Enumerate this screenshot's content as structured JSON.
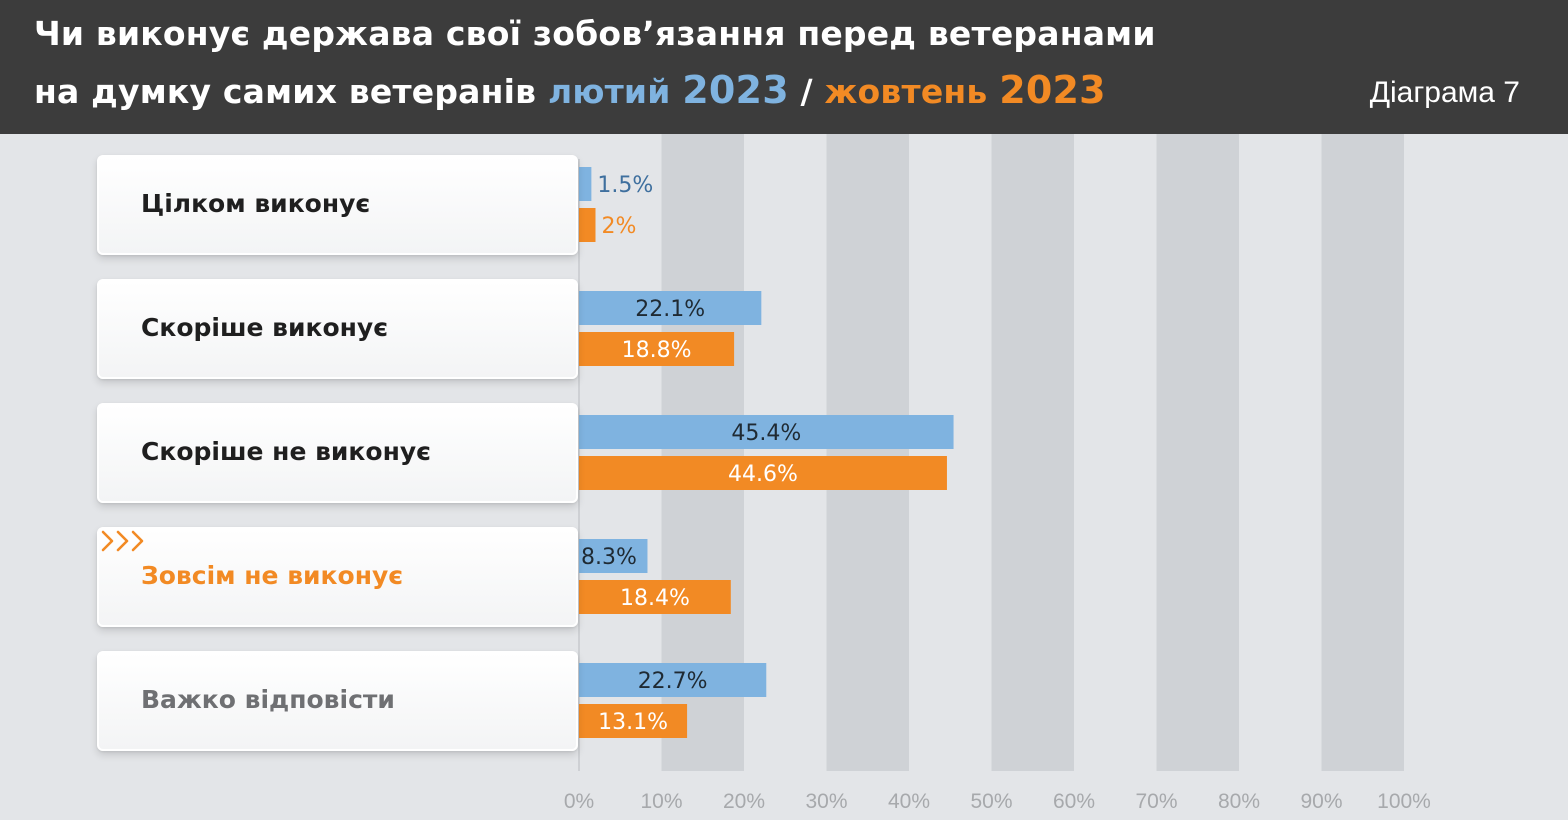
{
  "header": {
    "title_line1": "Чи виконує держава свої зобов’язання перед ветеранами",
    "title_line2_prefix": "на думку самих ветеранів",
    "title_feb_word": "лютий",
    "title_feb_year": "2023",
    "title_sep": "/",
    "title_oct_word": "жовтень",
    "title_oct_year": "2023",
    "diagram_label": "Діаграма 7"
  },
  "colors": {
    "feb": "#7fb3e0",
    "oct": "#f28a24",
    "header_bg": "#3c3c3c",
    "highlight_label": "#f28a24",
    "muted_label": "#6f7073"
  },
  "chart_data": {
    "type": "bar",
    "orientation": "horizontal",
    "title": "Чи виконує держава свої зобов’язання перед ветеранами на думку самих ветеранів лютий 2023 / жовтень 2023",
    "categories": [
      "Цілком виконує",
      "Скоріше виконує",
      "Скоріше не виконує",
      "Зовсім не виконує",
      "Важко відповісти"
    ],
    "category_styles": [
      "normal",
      "normal",
      "normal",
      "highlight",
      "muted"
    ],
    "series": [
      {
        "name": "лютий 2023",
        "color": "#7fb3e0",
        "values": [
          1.5,
          22.1,
          45.4,
          8.3,
          22.7
        ],
        "labels": [
          "1.5%",
          "22.1%",
          "45.4%",
          "8.3%",
          "22.7%"
        ]
      },
      {
        "name": "жовтень 2023",
        "color": "#f28a24",
        "values": [
          2,
          18.8,
          44.6,
          18.4,
          13.1
        ],
        "labels": [
          "2%",
          "18.8%",
          "44.6%",
          "18.4%",
          "13.1%"
        ]
      }
    ],
    "xlim": [
      0,
      100
    ],
    "xticks": [
      "0%",
      "10%",
      "20%",
      "30%",
      "40%",
      "50%",
      "60%",
      "70%",
      "80%",
      "90%",
      "100%"
    ],
    "grid": "alternating vertical bands"
  }
}
